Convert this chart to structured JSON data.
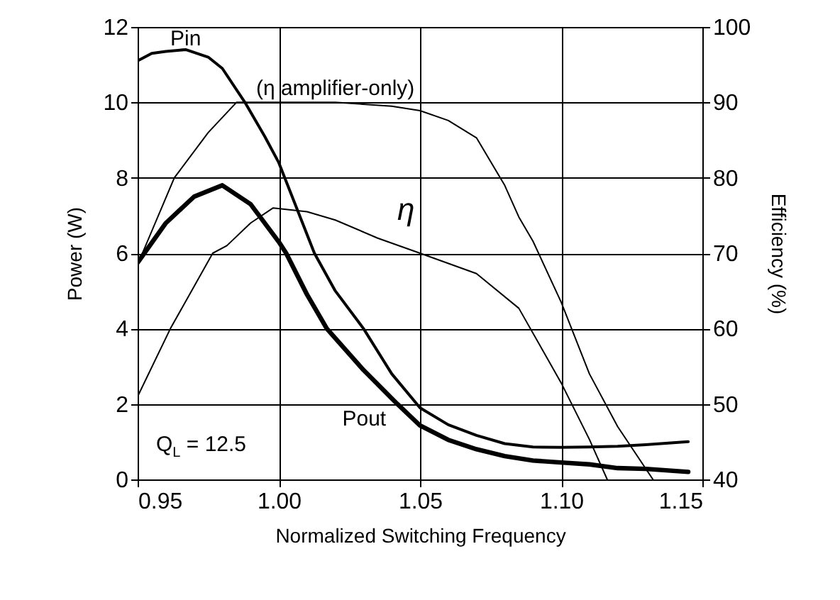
{
  "chart_data": {
    "type": "line",
    "xlabel": "Normalized Switching Frequency",
    "ylabel": "Power (W)",
    "y2label": "Efficiency (%)",
    "xlim": [
      0.95,
      1.15
    ],
    "xticks": [
      0.95,
      {
        "value": 1.0,
        "label": "1.00"
      },
      1.05,
      {
        "value": 1.1,
        "label": "1.10"
      },
      1.15
    ],
    "ylim": [
      0,
      12
    ],
    "yticks": [
      0,
      2,
      4,
      6,
      8,
      10,
      12
    ],
    "y2lim": [
      40,
      100
    ],
    "y2ticks": [
      40,
      50,
      60,
      70,
      80,
      90,
      100
    ],
    "grid": true,
    "marker": "none",
    "line_style": "solid",
    "annotations": [
      "Q$_{L}$ = 12.5"
    ],
    "series": [
      {
        "name": "Pin",
        "color": "#000000",
        "x": [
          0.95,
          0.955,
          0.96,
          0.967,
          0.975,
          0.98,
          0.988,
          0.995,
          1.0,
          1.0126,
          1.02,
          1.03,
          1.04,
          1.05,
          1.06,
          1.07,
          1.08,
          1.09,
          1.1,
          1.11,
          1.12,
          1.13,
          1.145
        ],
        "values": [
          11.1,
          11.3,
          11.35,
          11.4,
          11.2,
          10.9,
          10.0,
          9.1,
          8.4,
          6.0,
          5.0,
          4.0,
          2.8,
          1.9,
          1.45,
          1.17,
          0.95,
          0.86,
          0.85,
          0.86,
          0.88,
          0.92,
          1.0
        ]
      },
      {
        "name": "Pout",
        "color": "#000000",
        "x": [
          0.95,
          0.96,
          0.97,
          0.98,
          0.99,
          1.0,
          1.0026,
          1.01,
          1.017,
          1.03,
          1.042,
          1.05,
          1.06,
          1.07,
          1.08,
          1.09,
          1.1,
          1.11,
          1.12,
          1.13,
          1.145
        ],
        "values": [
          5.75,
          6.8,
          7.5,
          7.8,
          7.3,
          6.3,
          6.0,
          4.9,
          4.0,
          2.9,
          2.0,
          1.43,
          1.05,
          0.8,
          0.62,
          0.5,
          0.45,
          0.4,
          0.3,
          0.28,
          0.2
        ]
      },
      {
        "name": "η",
        "color": "#000000",
        "axis": "y2",
        "x": [
          0.95,
          0.9616,
          0.9766,
          0.9816,
          0.99,
          0.998,
          1.01,
          1.02,
          1.035,
          1.05,
          1.07,
          1.085,
          1.1,
          1.11,
          1.1163
        ],
        "values": [
          51,
          60,
          70,
          71,
          74,
          76,
          75.5,
          74.4,
          72,
          70,
          67.3,
          62.7,
          52.8,
          45.3,
          40
        ]
      },
      {
        "name": "(η amplifier-only)",
        "color": "#000000",
        "axis": "y2",
        "x": [
          0.95,
          0.963,
          0.975,
          0.985,
          1.0,
          1.02,
          1.04,
          1.05,
          1.06,
          1.07,
          1.08,
          1.085,
          1.09,
          1.1,
          1.11,
          1.12,
          1.1325
        ],
        "values": [
          68.5,
          80,
          86,
          90,
          90,
          90,
          89.5,
          88.9,
          87.6,
          85.3,
          79,
          74.8,
          71.6,
          63.5,
          54,
          47,
          40
        ]
      }
    ]
  }
}
